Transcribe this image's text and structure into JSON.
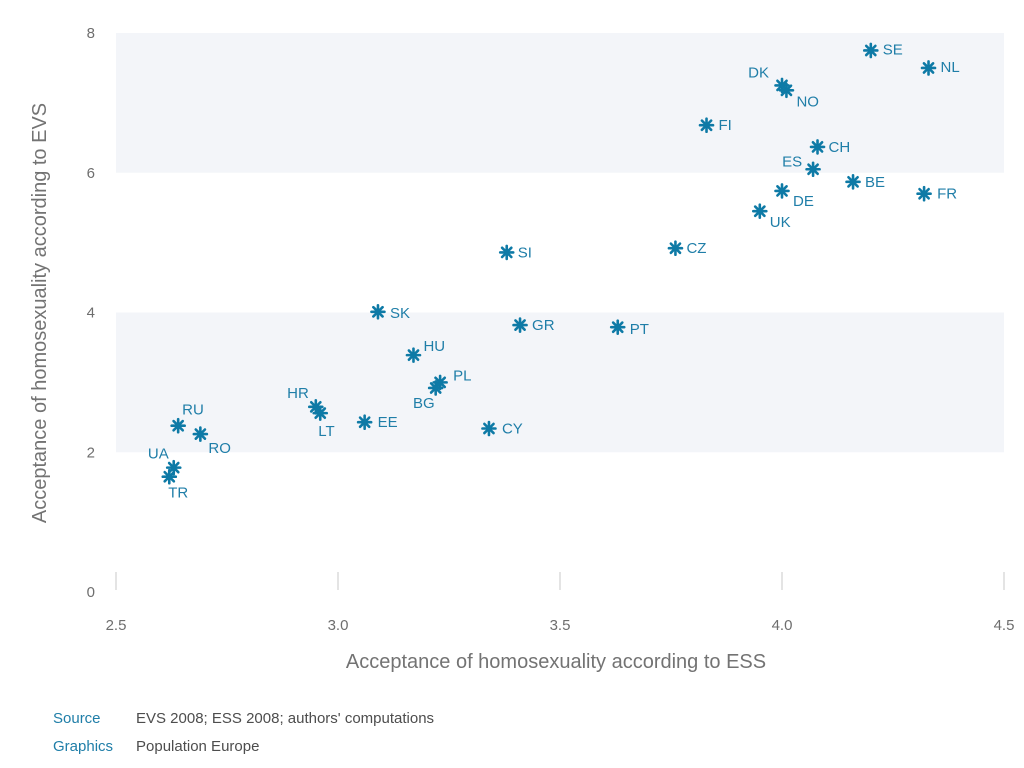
{
  "chart_data": {
    "type": "scatter",
    "xlabel": "Acceptance of homosexuality according to ESS",
    "ylabel": "Acceptance of homosexuality according to EVS",
    "xlim": [
      2.5,
      4.5
    ],
    "ylim": [
      0,
      8
    ],
    "xticks": [
      "2.5",
      "3.0",
      "3.5",
      "4.0",
      "4.5"
    ],
    "yticks": [
      "0",
      "2",
      "4",
      "6",
      "8"
    ],
    "grid": "alternating horizontal bands",
    "marker": "asterisk",
    "point_color": "#0e7aa6",
    "band_color": "#f3f5f9",
    "points": [
      {
        "label": "SE",
        "x": 4.2,
        "y": 7.75
      },
      {
        "label": "NL",
        "x": 4.33,
        "y": 7.5
      },
      {
        "label": "DK",
        "x": 4.0,
        "y": 7.25
      },
      {
        "label": "NO",
        "x": 4.01,
        "y": 7.18
      },
      {
        "label": "FI",
        "x": 3.83,
        "y": 6.68
      },
      {
        "label": "CH",
        "x": 4.08,
        "y": 6.37
      },
      {
        "label": "ES",
        "x": 4.07,
        "y": 6.05
      },
      {
        "label": "BE",
        "x": 4.16,
        "y": 5.87
      },
      {
        "label": "FR",
        "x": 4.32,
        "y": 5.7
      },
      {
        "label": "DE",
        "x": 4.0,
        "y": 5.74
      },
      {
        "label": "UK",
        "x": 3.95,
        "y": 5.45
      },
      {
        "label": "CZ",
        "x": 3.76,
        "y": 4.92
      },
      {
        "label": "SI",
        "x": 3.38,
        "y": 4.86
      },
      {
        "label": "SK",
        "x": 3.09,
        "y": 4.01
      },
      {
        "label": "GR",
        "x": 3.41,
        "y": 3.82
      },
      {
        "label": "PT",
        "x": 3.63,
        "y": 3.79
      },
      {
        "label": "HU",
        "x": 3.17,
        "y": 3.39
      },
      {
        "label": "PL",
        "x": 3.23,
        "y": 3.0
      },
      {
        "label": "BG",
        "x": 3.22,
        "y": 2.92
      },
      {
        "label": "HR",
        "x": 2.95,
        "y": 2.65
      },
      {
        "label": "LT",
        "x": 2.96,
        "y": 2.56
      },
      {
        "label": "EE",
        "x": 3.06,
        "y": 2.43
      },
      {
        "label": "CY",
        "x": 3.34,
        "y": 2.34
      },
      {
        "label": "RU",
        "x": 2.64,
        "y": 2.38
      },
      {
        "label": "RO",
        "x": 2.69,
        "y": 2.26
      },
      {
        "label": "UA",
        "x": 2.63,
        "y": 1.78
      },
      {
        "label": "TR",
        "x": 2.62,
        "y": 1.65
      }
    ]
  },
  "footer": {
    "source_label": "Source",
    "source_value": "EVS 2008; ESS 2008; authors' computations",
    "graphics_label": "Graphics",
    "graphics_value": "Population Europe"
  }
}
